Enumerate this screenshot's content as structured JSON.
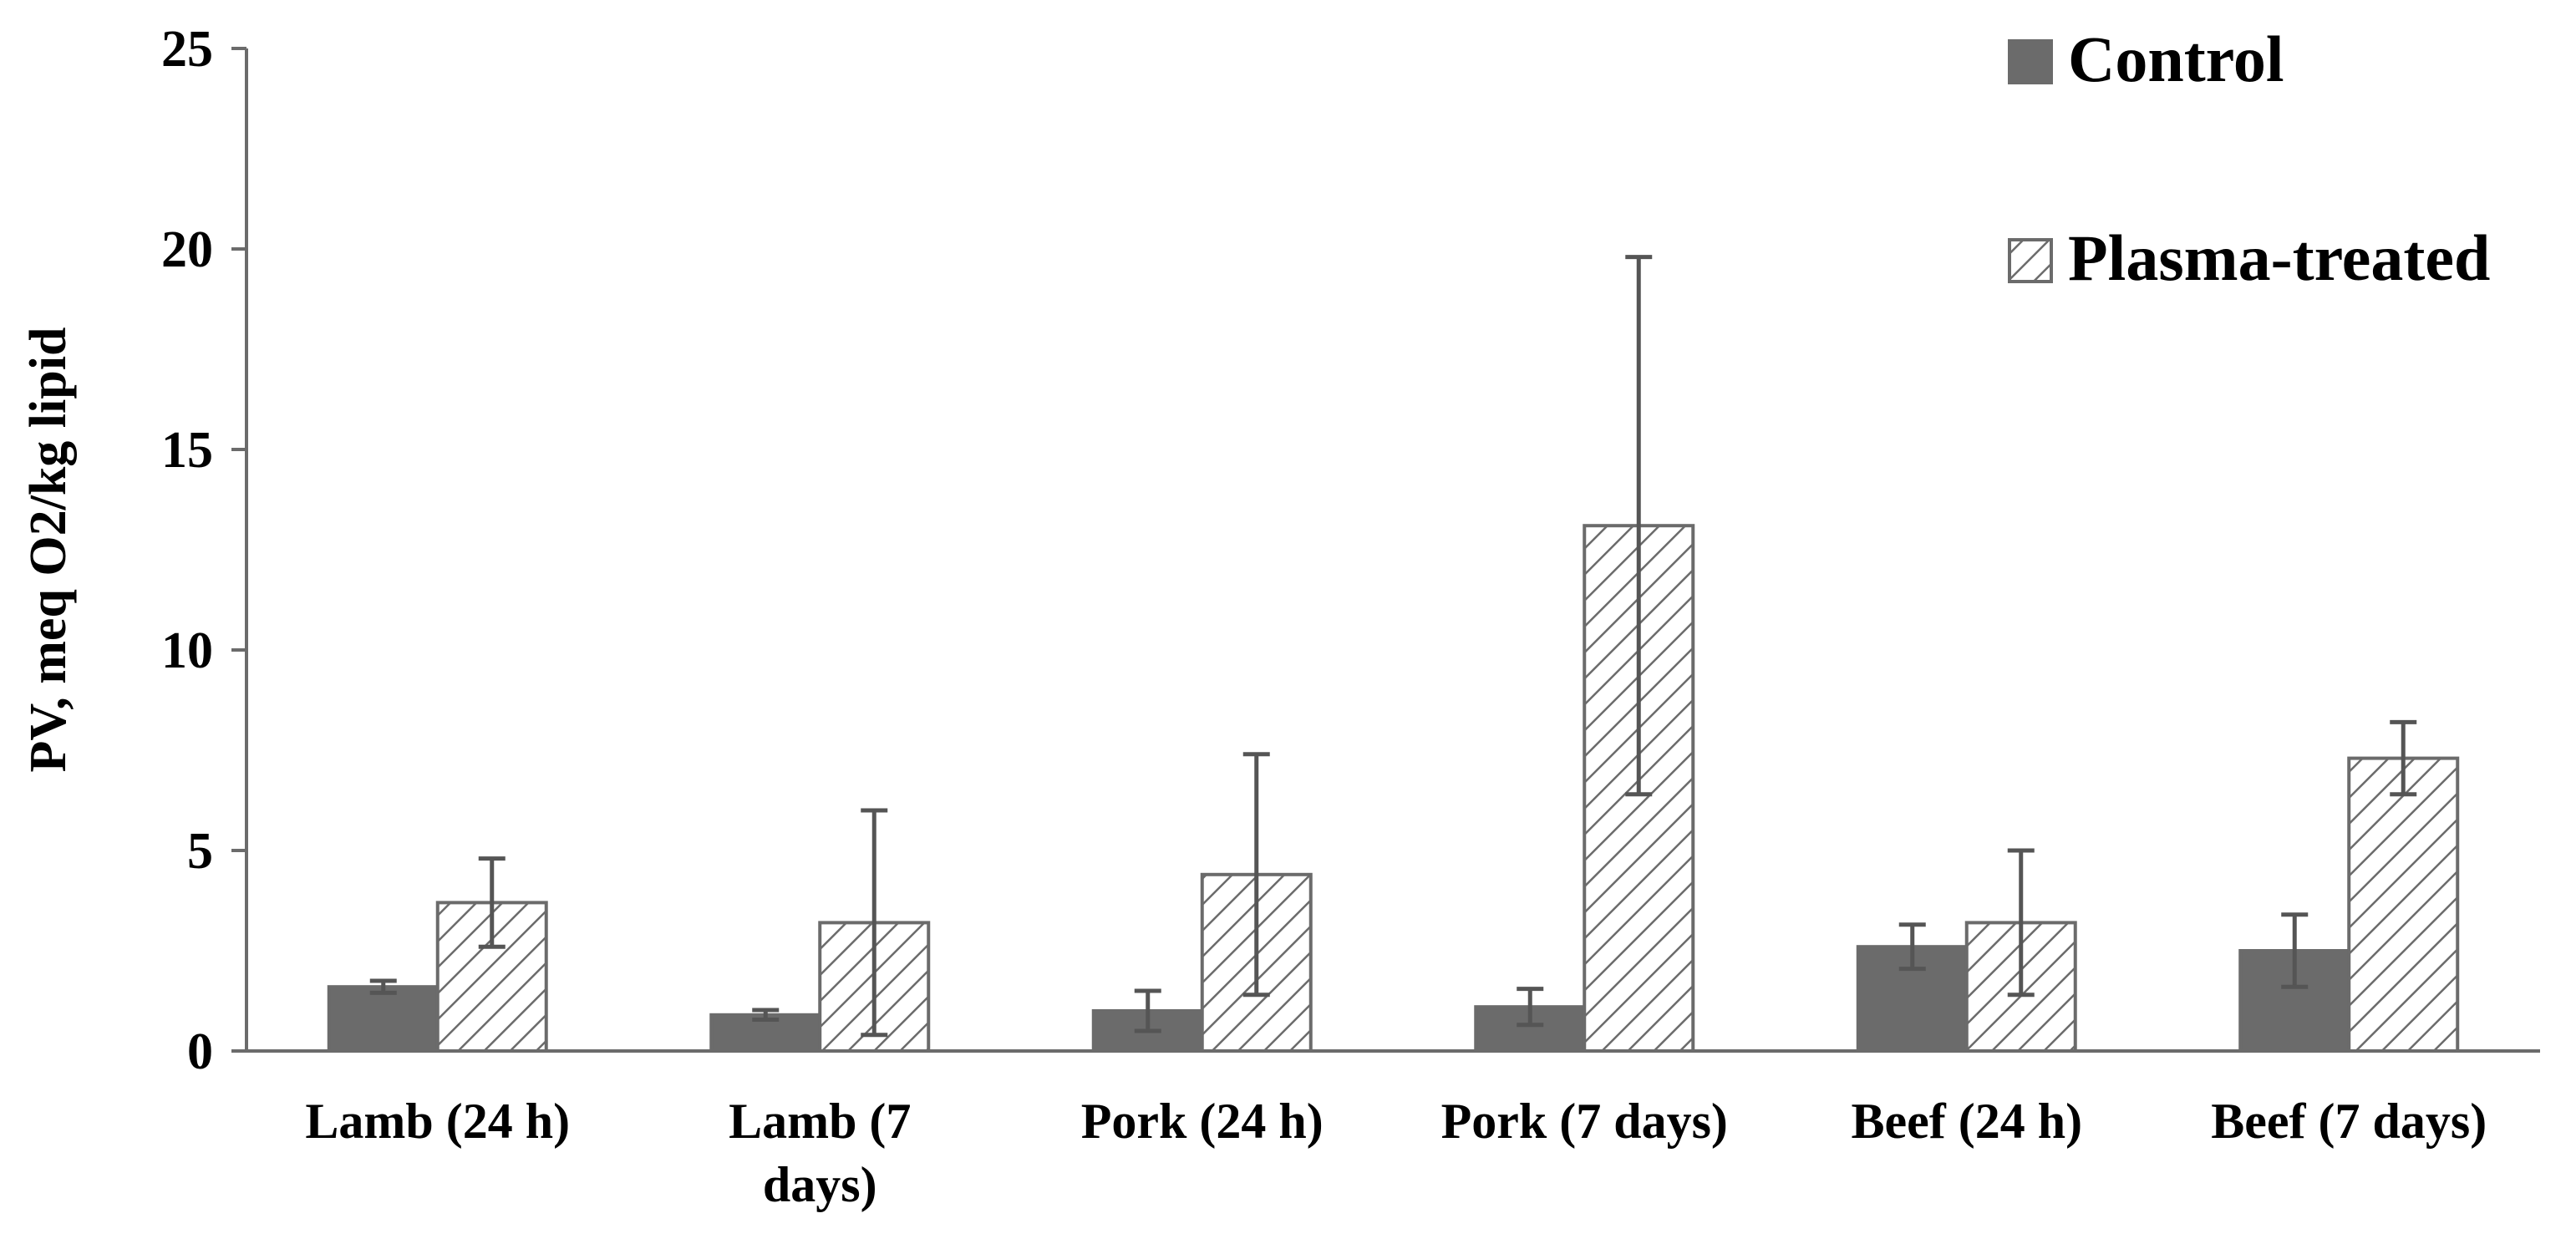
{
  "chart_data": {
    "type": "bar",
    "title": "",
    "xlabel": "",
    "ylabel": "PV, meq O2/kg lipid",
    "ylim": [
      0,
      25
    ],
    "yticks": [
      0,
      5,
      10,
      15,
      20,
      25
    ],
    "ytick_labels": [
      "0",
      "5",
      "10",
      "15",
      "20",
      "25"
    ],
    "grid": false,
    "legend_position": "top-right",
    "categories": [
      [
        "Lamb (24 h)"
      ],
      [
        "Lamb (7",
        "days)"
      ],
      [
        "Pork (24 h)"
      ],
      [
        "Pork (7 days)"
      ],
      [
        "Beef (24 h)"
      ],
      [
        "Beef (7 days)"
      ]
    ],
    "series": [
      {
        "name": "Control",
        "pattern": "solid",
        "color": "#6b6b6b",
        "values": [
          1.6,
          0.9,
          1.0,
          1.1,
          2.6,
          2.5
        ],
        "error": [
          0.15,
          0.12,
          0.5,
          0.45,
          0.55,
          0.9
        ]
      },
      {
        "name": "Plasma-treated",
        "pattern": "diagonal-hatch",
        "color": "#ffffff",
        "values": [
          3.7,
          3.2,
          4.4,
          13.1,
          3.2,
          7.3
        ],
        "error": [
          1.1,
          2.8,
          3.0,
          6.7,
          1.8,
          0.9
        ]
      }
    ]
  },
  "colors": {
    "axis": "#6b6b6b",
    "error_bar": "#555555",
    "hatch": "#6b6b6b"
  }
}
